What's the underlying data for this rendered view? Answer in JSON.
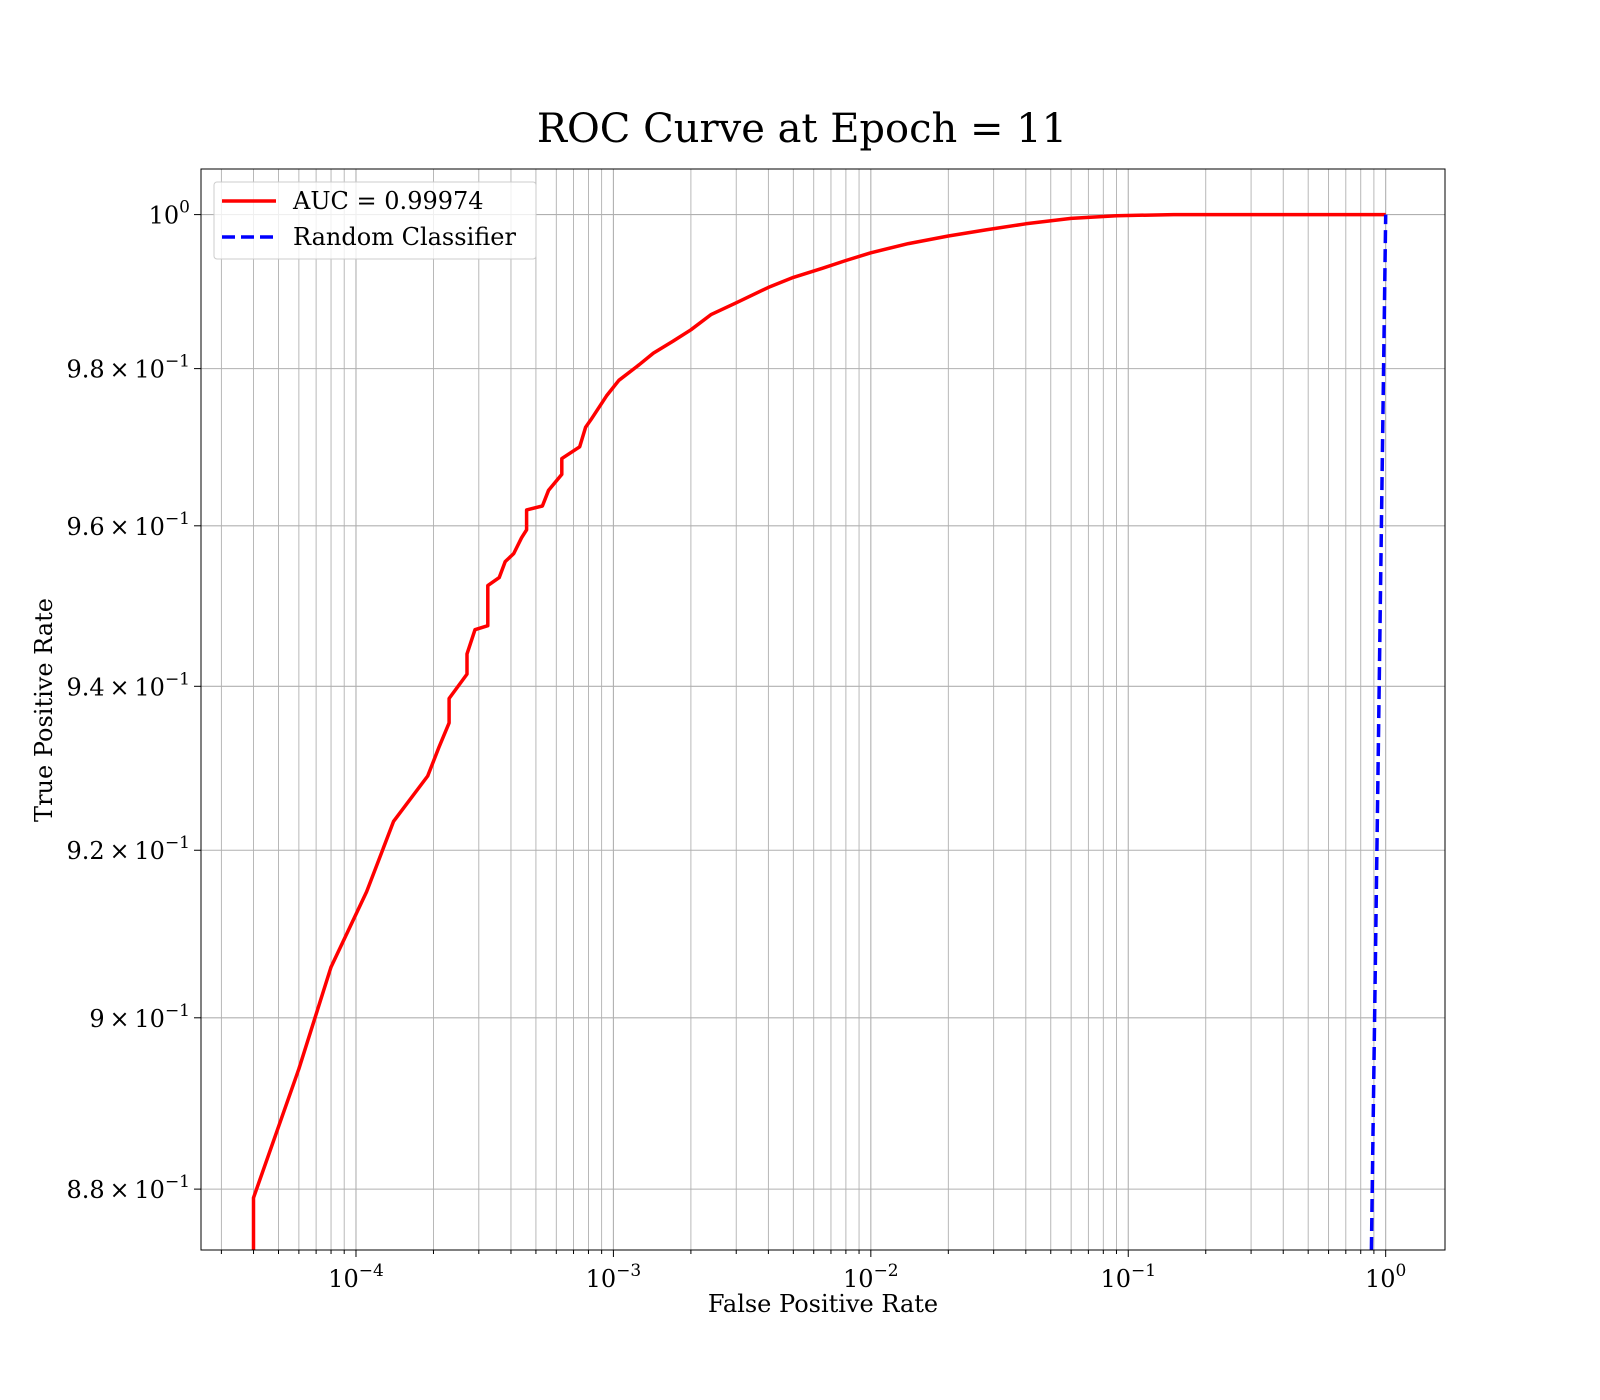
{
  "chart_data": {
    "type": "line",
    "title": "ROC Curve at Epoch = 11",
    "xlabel": "False Positive Rate",
    "ylabel": "True Positive Rate",
    "xscale": "log",
    "yscale": "log",
    "xlim": [
      2.5e-05,
      1.7
    ],
    "ylim": [
      0.873,
      1.006
    ],
    "grid": "on (major and minor, both axes)",
    "legend_location": "upper left",
    "x_ticks": [
      {
        "value": 0.0001,
        "base": "10",
        "exp": "−4"
      },
      {
        "value": 0.001,
        "base": "10",
        "exp": "−3"
      },
      {
        "value": 0.01,
        "base": "10",
        "exp": "−2"
      },
      {
        "value": 0.1,
        "base": "10",
        "exp": "−1"
      },
      {
        "value": 1,
        "base": "10",
        "exp": "0"
      }
    ],
    "y_ticks": [
      {
        "value": 1.0,
        "mant": "",
        "base": "10",
        "exp": "0"
      },
      {
        "value": 0.98,
        "mant": "9.8 × 10",
        "base": "",
        "exp": "−1"
      },
      {
        "value": 0.96,
        "mant": "9.6 × 10",
        "base": "",
        "exp": "−1"
      },
      {
        "value": 0.94,
        "mant": "9.4 × 10",
        "base": "",
        "exp": "−1"
      },
      {
        "value": 0.92,
        "mant": "9.2 × 10",
        "base": "",
        "exp": "−1"
      },
      {
        "value": 0.9,
        "mant": "9 × 10",
        "base": "",
        "exp": "−1"
      },
      {
        "value": 0.88,
        "mant": "8.8 × 10",
        "base": "",
        "exp": "−1"
      }
    ],
    "series": [
      {
        "name": "AUC = 0.99974",
        "color": "#ff0000",
        "style": "solid",
        "points": [
          [
            4e-05,
            0.873
          ],
          [
            4e-05,
            0.879
          ],
          [
            6e-05,
            0.894
          ],
          [
            8e-05,
            0.906
          ],
          [
            0.00011,
            0.915
          ],
          [
            0.00014,
            0.9235
          ],
          [
            0.00019,
            0.929
          ],
          [
            0.00021,
            0.9325
          ],
          [
            0.00023,
            0.9355
          ],
          [
            0.00023,
            0.9385
          ],
          [
            0.00027,
            0.9415
          ],
          [
            0.00027,
            0.944
          ],
          [
            0.00029,
            0.947
          ],
          [
            0.000325,
            0.9475
          ],
          [
            0.000325,
            0.9525
          ],
          [
            0.00036,
            0.9535
          ],
          [
            0.00038,
            0.9555
          ],
          [
            0.00041,
            0.9565
          ],
          [
            0.00044,
            0.9585
          ],
          [
            0.00046,
            0.9595
          ],
          [
            0.00046,
            0.962
          ],
          [
            0.00053,
            0.9625
          ],
          [
            0.00056,
            0.9645
          ],
          [
            0.00063,
            0.9665
          ],
          [
            0.00063,
            0.9685
          ],
          [
            0.00074,
            0.97
          ],
          [
            0.00078,
            0.9725
          ],
          [
            0.00082,
            0.9735
          ],
          [
            0.00094,
            0.9765
          ],
          [
            0.00105,
            0.9785
          ],
          [
            0.00126,
            0.9805
          ],
          [
            0.00143,
            0.982
          ],
          [
            0.0017,
            0.9835
          ],
          [
            0.002,
            0.985
          ],
          [
            0.0024,
            0.987
          ],
          [
            0.003,
            0.9885
          ],
          [
            0.004,
            0.9905
          ],
          [
            0.005,
            0.9918
          ],
          [
            0.0065,
            0.993
          ],
          [
            0.008,
            0.994
          ],
          [
            0.01,
            0.995
          ],
          [
            0.014,
            0.9962
          ],
          [
            0.02,
            0.9972
          ],
          [
            0.028,
            0.998
          ],
          [
            0.04,
            0.9988
          ],
          [
            0.06,
            0.9995
          ],
          [
            0.09,
            0.99985
          ],
          [
            0.15,
            1.0
          ],
          [
            1.0,
            1.0
          ]
        ]
      },
      {
        "name": "Random Classifier",
        "color": "#0000ff",
        "style": "dashed",
        "points": [
          [
            0.88,
            0.873
          ],
          [
            1.0,
            1.0
          ]
        ]
      }
    ]
  }
}
